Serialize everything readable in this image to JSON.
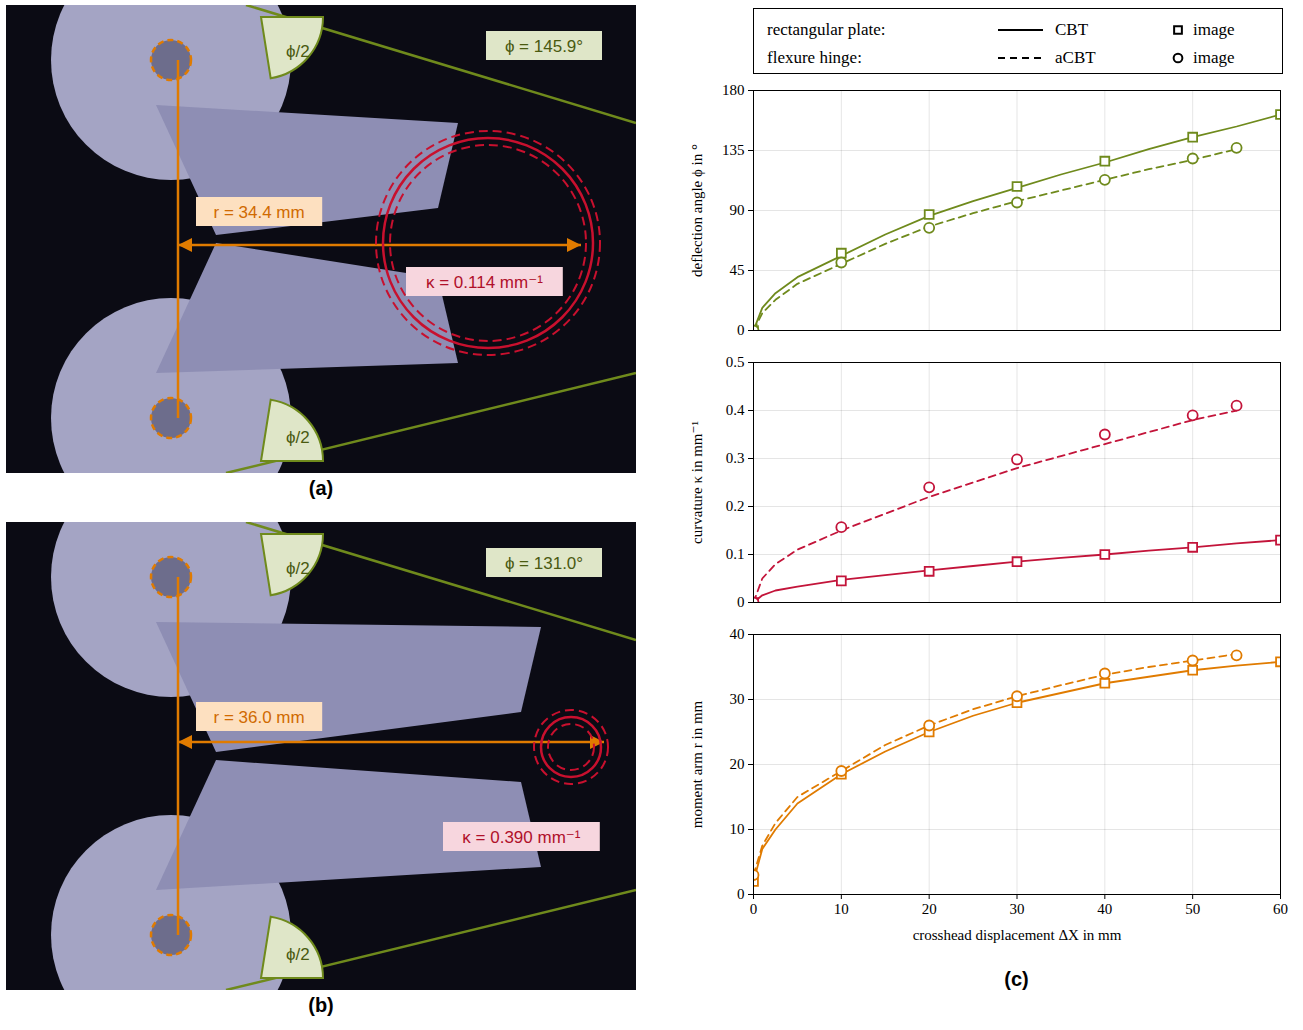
{
  "photos": [
    {
      "panel": "(a)",
      "phi_label": "ϕ = 145.9°",
      "half_angle_label": "ϕ/2",
      "r_label": "r = 34.4 mm",
      "kappa_label": "κ = 0.114 mm⁻¹"
    },
    {
      "panel": "(b)",
      "phi_label": "ϕ = 131.0°",
      "half_angle_label": "ϕ/2",
      "r_label": "r = 36.0 mm",
      "kappa_label": "κ = 0.390 mm⁻¹"
    }
  ],
  "chart_panel_label": "(c)",
  "legend_box": {
    "rows": [
      {
        "label": "rectangular plate:",
        "line_name": "CBT",
        "marker_name": "image"
      },
      {
        "label": "flexure hinge:",
        "line_name": "aCBT",
        "marker_name": "image"
      }
    ]
  },
  "chart_data": [
    {
      "type": "line",
      "y_label": "deflection angle ϕ in °",
      "xlim": [
        0,
        60
      ],
      "xticks": [
        0,
        10,
        20,
        30,
        40,
        50,
        60
      ],
      "ylim": [
        0,
        180
      ],
      "yticks": [
        0,
        45,
        90,
        135,
        180
      ],
      "grid": true,
      "tick_labels": "y",
      "series": [
        {
          "name": "CBT",
          "type": "line",
          "line_style": "solid",
          "color": "#6f8a1c",
          "x": [
            0,
            1,
            2.5,
            5,
            10,
            15,
            20,
            25,
            30,
            35,
            40,
            45,
            50,
            55,
            60
          ],
          "values": [
            0,
            17,
            28,
            40,
            56,
            72,
            86,
            97,
            107,
            117,
            126,
            136,
            145,
            153,
            162
          ]
        },
        {
          "name": "image",
          "type": "scatter",
          "marker": "square",
          "color": "#6f8a1c",
          "x": [
            0,
            10,
            20,
            30,
            40,
            50,
            60
          ],
          "values": [
            0,
            58,
            87,
            108,
            127,
            145,
            162
          ]
        },
        {
          "name": "aCBT",
          "type": "line",
          "line_style": "dashed",
          "color": "#6f8a1c",
          "x": [
            0,
            1,
            2.5,
            5,
            10,
            15,
            20,
            25,
            30,
            35,
            40,
            45,
            50,
            55
          ],
          "values": [
            0,
            13,
            23,
            35,
            50,
            65,
            78,
            88,
            97,
            105,
            113,
            121,
            128,
            136
          ]
        },
        {
          "name": "image",
          "type": "scatter",
          "marker": "circle",
          "color": "#6f8a1c",
          "x": [
            0,
            10,
            20,
            30,
            40,
            50,
            55
          ],
          "values": [
            0,
            51,
            77,
            96,
            113,
            129,
            137
          ]
        }
      ]
    },
    {
      "type": "line",
      "y_label": "curvature κ in mm⁻¹",
      "xlim": [
        0,
        60
      ],
      "xticks": [
        0,
        10,
        20,
        30,
        40,
        50,
        60
      ],
      "ylim": [
        0,
        0.5
      ],
      "yticks": [
        0,
        0.1,
        0.2,
        0.3,
        0.4,
        0.5
      ],
      "grid": true,
      "tick_labels": "y",
      "series": [
        {
          "name": "CBT",
          "type": "line",
          "line_style": "solid",
          "color": "#c3143a",
          "x": [
            0,
            1,
            2.5,
            5,
            10,
            15,
            20,
            25,
            30,
            35,
            40,
            45,
            50,
            55,
            60
          ],
          "values": [
            0,
            0.015,
            0.025,
            0.033,
            0.047,
            0.057,
            0.067,
            0.076,
            0.085,
            0.093,
            0.1,
            0.108,
            0.115,
            0.123,
            0.13
          ]
        },
        {
          "name": "image",
          "type": "scatter",
          "marker": "square",
          "color": "#c3143a",
          "x": [
            0,
            10,
            20,
            30,
            40,
            50,
            60
          ],
          "values": [
            0,
            0.045,
            0.065,
            0.085,
            0.1,
            0.115,
            0.13
          ]
        },
        {
          "name": "aCBT",
          "type": "line",
          "line_style": "dashed",
          "color": "#c3143a",
          "x": [
            0,
            1,
            2.5,
            5,
            10,
            15,
            20,
            25,
            30,
            35,
            40,
            45,
            50,
            55
          ],
          "values": [
            0,
            0.05,
            0.08,
            0.11,
            0.15,
            0.185,
            0.22,
            0.25,
            0.28,
            0.305,
            0.33,
            0.355,
            0.38,
            0.4
          ]
        },
        {
          "name": "image",
          "type": "scatter",
          "marker": "circle",
          "color": "#c3143a",
          "x": [
            0,
            10,
            20,
            30,
            40,
            50,
            55
          ],
          "values": [
            0,
            0.157,
            0.24,
            0.298,
            0.35,
            0.39,
            0.41
          ]
        }
      ]
    },
    {
      "type": "line",
      "y_label": "moment arm r in mm",
      "x_label": "crosshead displacement ΔX in mm",
      "xlim": [
        0,
        60
      ],
      "xticks": [
        0,
        10,
        20,
        30,
        40,
        50,
        60
      ],
      "ylim": [
        0,
        40
      ],
      "yticks": [
        0,
        10,
        20,
        30,
        40
      ],
      "grid": true,
      "series": [
        {
          "name": "CBT",
          "type": "line",
          "line_style": "solid",
          "color": "#e07b00",
          "x": [
            0,
            1,
            2.5,
            5,
            10,
            15,
            20,
            25,
            30,
            35,
            40,
            45,
            50,
            55,
            60
          ],
          "values": [
            2,
            7,
            10,
            14,
            18.5,
            22,
            25,
            27.5,
            29.5,
            31,
            32.5,
            33.5,
            34.5,
            35.2,
            35.8
          ]
        },
        {
          "name": "image",
          "type": "scatter",
          "marker": "square",
          "color": "#e07b00",
          "x": [
            0,
            10,
            20,
            30,
            40,
            50,
            60
          ],
          "values": [
            2,
            18.5,
            25,
            29.5,
            32.5,
            34.5,
            35.8
          ]
        },
        {
          "name": "aCBT",
          "type": "line",
          "line_style": "dashed",
          "color": "#e07b00",
          "x": [
            0,
            1,
            2.5,
            5,
            10,
            15,
            20,
            25,
            30,
            35,
            40,
            45,
            50,
            55
          ],
          "values": [
            3,
            7.5,
            11,
            15,
            19,
            23,
            26,
            28.5,
            30.5,
            32.2,
            33.8,
            35,
            36,
            37
          ]
        },
        {
          "name": "image",
          "type": "scatter",
          "marker": "circle",
          "color": "#e07b00",
          "x": [
            0,
            10,
            20,
            30,
            40,
            50,
            55
          ],
          "values": [
            3,
            19,
            26,
            30.5,
            34,
            36,
            36.8
          ]
        }
      ]
    }
  ]
}
